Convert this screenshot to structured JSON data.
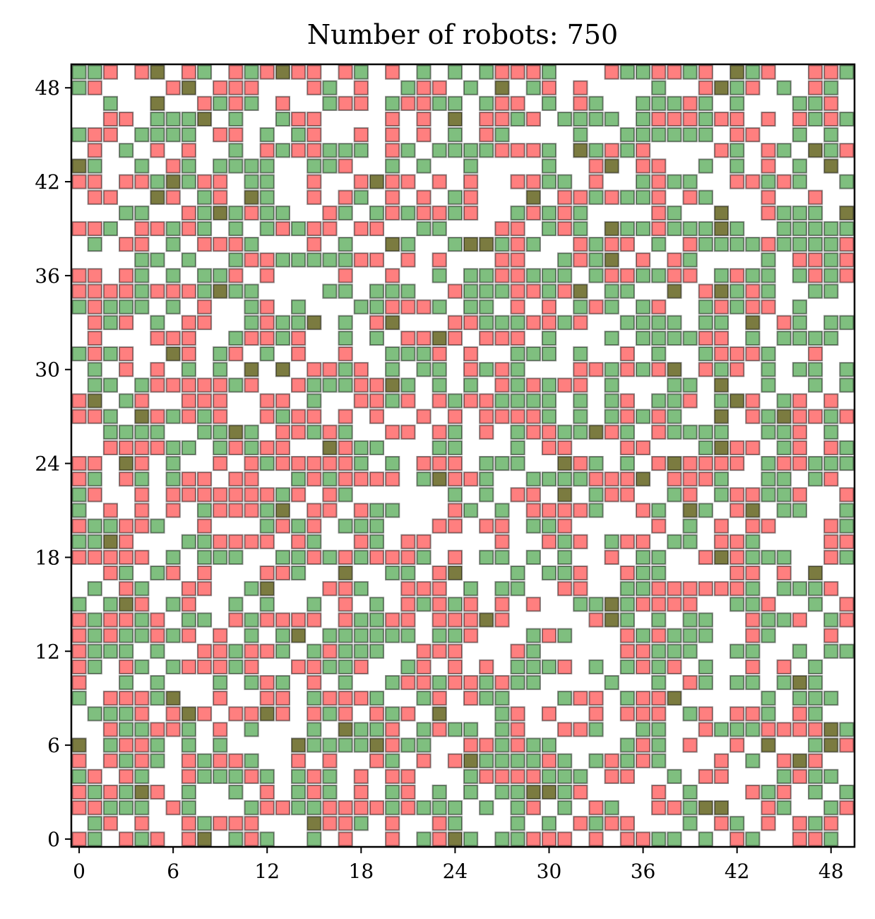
{
  "chart_data": {
    "type": "heatmap",
    "title": "Number of robots: 750",
    "xlabel": "",
    "ylabel": "",
    "xlim": [
      -0.5,
      49.5
    ],
    "ylim": [
      -0.5,
      49.5
    ],
    "xticks": [
      0,
      6,
      12,
      18,
      24,
      30,
      36,
      42,
      48
    ],
    "yticks": [
      0,
      6,
      12,
      18,
      24,
      30,
      36,
      42,
      48
    ],
    "grid_size": 50,
    "colors": {
      "green": "#008000",
      "red": "#ff0000",
      "overlap": "#4f4f00"
    },
    "robot_count": 750
  }
}
